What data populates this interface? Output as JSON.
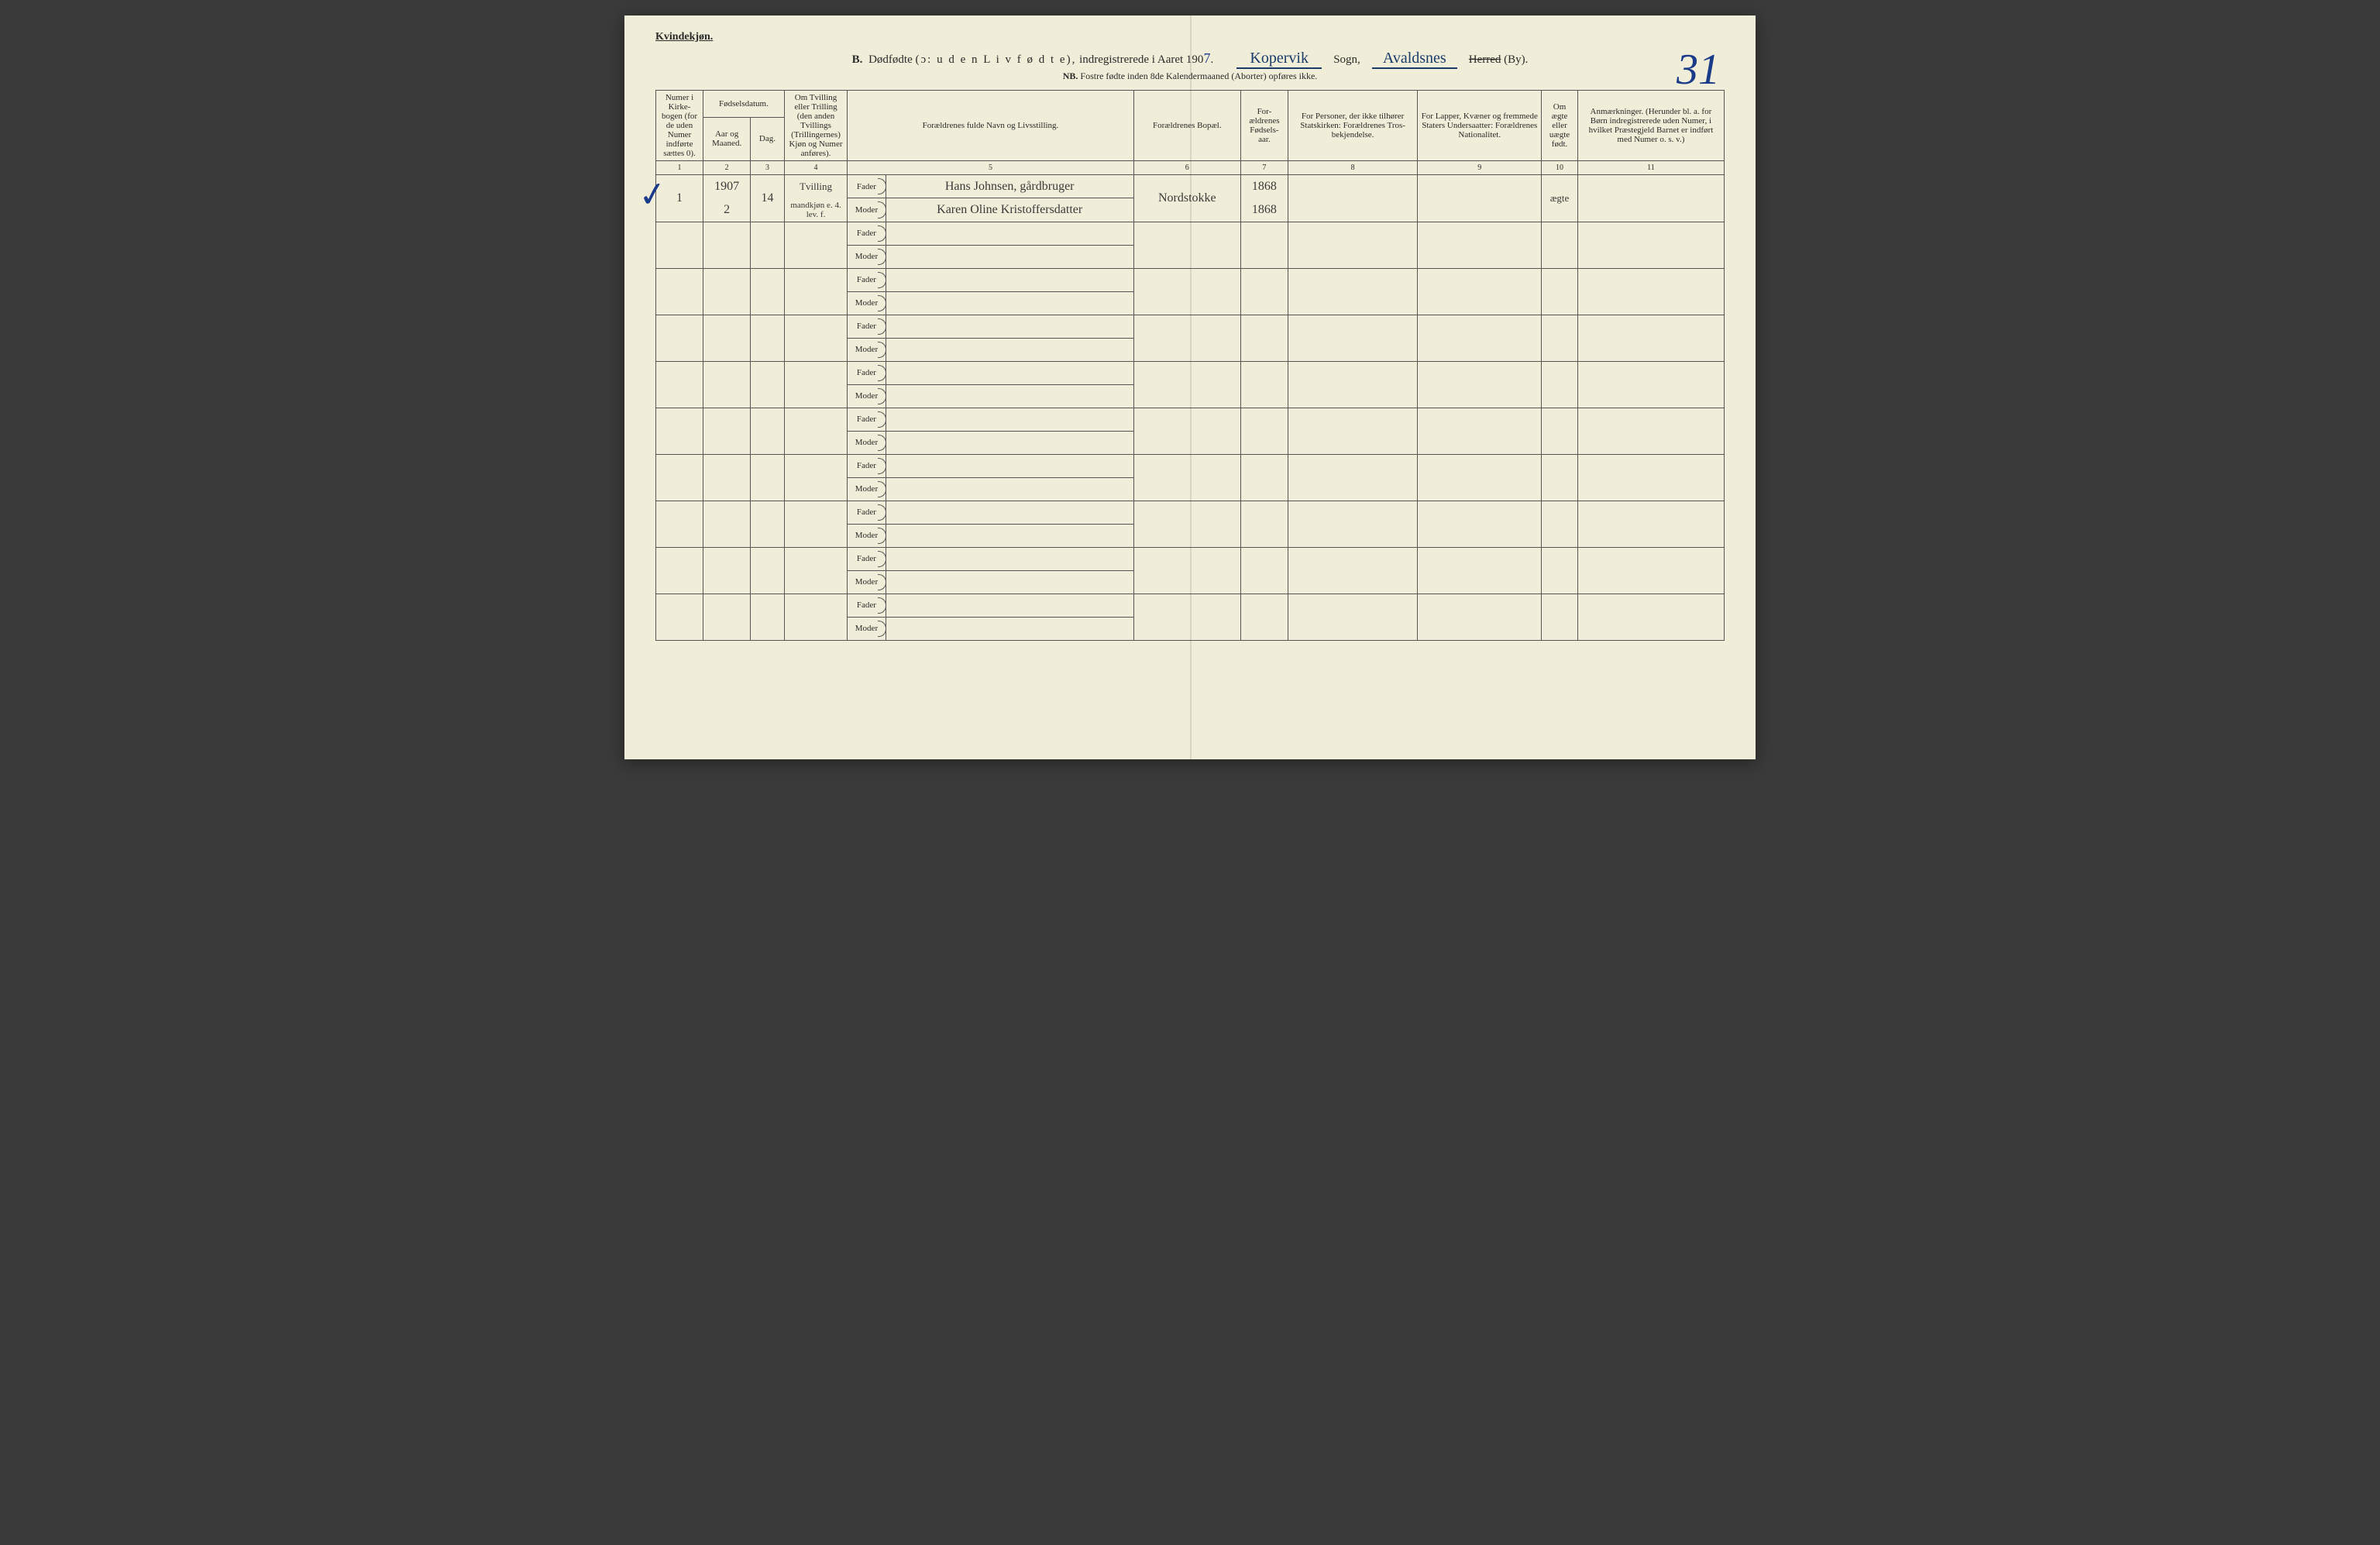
{
  "corner_label": "Kvindekjøn.",
  "title": {
    "prefix": "B.",
    "word1": "Dødfødte",
    "paren": "(ɔ: u d e n  L i v  f ø d t e),",
    "word2": "indregistrerede i Aaret 190",
    "year_suffix_hw": "7",
    "sogn_hw": "Kopervik",
    "sogn_label": "Sogn,",
    "herred_hw": "Avaldsnes",
    "herred_label_struck": "Herred",
    "by_label": "(By)."
  },
  "page_number_hw": "31",
  "subtitle": {
    "nb": "NB.",
    "text": "Fostre fødte inden 8de Kalendermaaned (Aborter) opføres ikke."
  },
  "headers": {
    "c1": "Numer i Kirke-bogen (for de uden Numer indførte sættes 0).",
    "c2_group": "Fødselsdatum.",
    "c2": "Aar og Maaned.",
    "c3": "Dag.",
    "c4": "Om Tvilling eller Trilling (den anden Tvillings (Trillingernes) Kjøn og Numer anføres).",
    "c5": "Forældrenes fulde Navn og Livsstilling.",
    "c6": "Forældrenes Bopæl.",
    "c7": "For-ældrenes Fødsels-aar.",
    "c8": "For Personer, der ikke tilhører Statskirken: Forældrenes Tros-bekjendelse.",
    "c9": "For Lapper, Kvæner og fremmede Staters Undersaatter: Forældrenes Nationalitet.",
    "c10": "Om ægte eller uægte født.",
    "c11": "Anmærkninger. (Herunder bl. a. for Børn indregistrerede uden Numer, i hvilket Præstegjeld Barnet er indført med Numer o. s. v.)"
  },
  "colnums": [
    "1",
    "2",
    "3",
    "4",
    "5",
    "6",
    "7",
    "8",
    "9",
    "10",
    "11"
  ],
  "fm": {
    "fader": "Fader",
    "moder": "Moder"
  },
  "entry": {
    "c1": "1",
    "c2_top": "1907",
    "c2_bot": "2",
    "c3": "14",
    "c4_top": "Tvilling",
    "c4_bot": "mandkjøn e. 4. lev. f.",
    "fader_name": "Hans Johnsen, gårdbruger",
    "moder_name": "Karen Oline Kristoffersdatter",
    "c6": "Nordstokke",
    "c7_top": "1868",
    "c7_bot": "1868",
    "c10": "ægte"
  }
}
